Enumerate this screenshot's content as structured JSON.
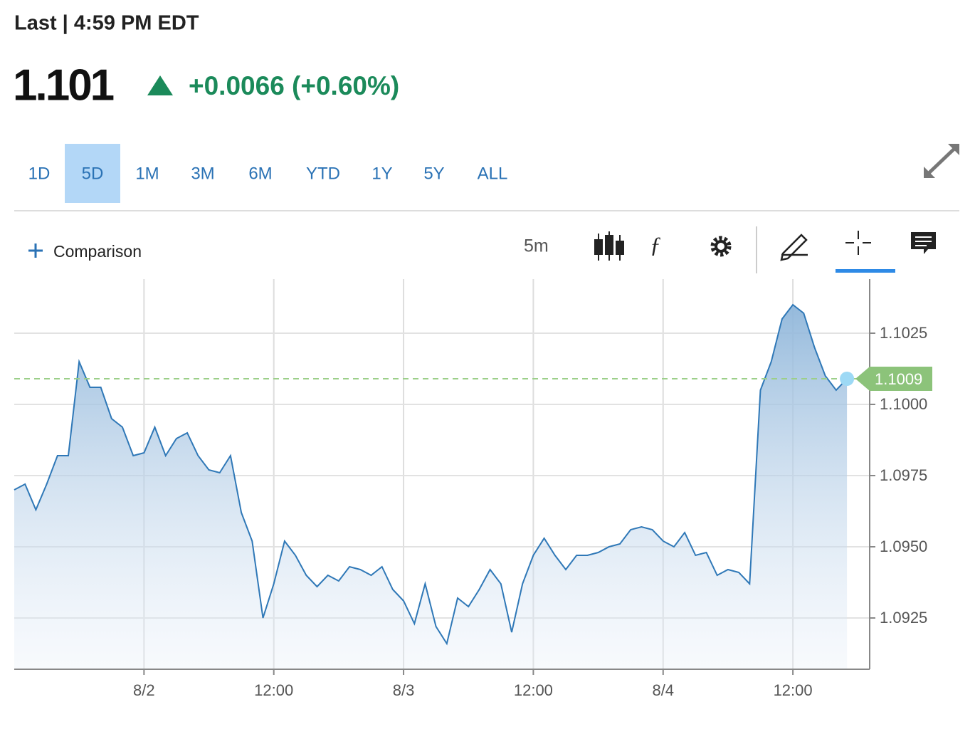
{
  "header": {
    "status": "Last | 4:59 PM EDT",
    "price": "1.101",
    "change": "+0.0066 (+0.60%)"
  },
  "ranges": [
    {
      "label": "1D",
      "selected": false
    },
    {
      "label": "5D",
      "selected": true
    },
    {
      "label": "1M",
      "selected": false
    },
    {
      "label": "3M",
      "selected": false
    },
    {
      "label": "6M",
      "selected": false
    },
    {
      "label": "YTD",
      "selected": false
    },
    {
      "label": "1Y",
      "selected": false
    },
    {
      "label": "5Y",
      "selected": false
    },
    {
      "label": "ALL",
      "selected": false
    }
  ],
  "toolbar": {
    "comparison": "Comparison",
    "interval": "5m"
  },
  "chart_data": {
    "type": "area",
    "color": "#2f78b7",
    "x": [
      "8/1 12:00",
      "8/1 13:00",
      "8/1 14:00",
      "8/1 15:00",
      "8/1 16:00",
      "8/1 17:00",
      "8/1 18:00",
      "8/1 19:00",
      "8/1 20:00",
      "8/1 21:00",
      "8/1 22:00",
      "8/1 23:00",
      "8/2 00:00",
      "8/2 01:00",
      "8/2 02:00",
      "8/2 03:00",
      "8/2 04:00",
      "8/2 05:00",
      "8/2 06:00",
      "8/2 07:00",
      "8/2 08:00",
      "8/2 09:00",
      "8/2 10:00",
      "8/2 11:00",
      "8/2 12:00",
      "8/2 13:00",
      "8/2 14:00",
      "8/2 15:00",
      "8/2 16:00",
      "8/2 17:00",
      "8/2 18:00",
      "8/2 19:00",
      "8/2 20:00",
      "8/2 21:00",
      "8/2 22:00",
      "8/2 23:00",
      "8/3 00:00",
      "8/3 01:00",
      "8/3 02:00",
      "8/3 03:00",
      "8/3 04:00",
      "8/3 05:00",
      "8/3 06:00",
      "8/3 07:00",
      "8/3 08:00",
      "8/3 09:00",
      "8/3 10:00",
      "8/3 11:00",
      "8/3 12:00",
      "8/3 13:00",
      "8/3 14:00",
      "8/3 15:00",
      "8/3 16:00",
      "8/3 17:00",
      "8/3 18:00",
      "8/3 19:00",
      "8/3 20:00",
      "8/3 21:00",
      "8/3 22:00",
      "8/3 23:00",
      "8/4 00:00",
      "8/4 01:00",
      "8/4 02:00",
      "8/4 03:00",
      "8/4 04:00",
      "8/4 05:00",
      "8/4 06:00",
      "8/4 07:00",
      "8/4 08:00",
      "8/4 09:00",
      "8/4 10:00",
      "8/4 11:00",
      "8/4 12:00",
      "8/4 13:00",
      "8/4 14:00",
      "8/4 15:00",
      "8/4 16:00",
      "8/4 17:00"
    ],
    "values": [
      1.097,
      1.0972,
      1.0963,
      1.0972,
      1.0982,
      1.0982,
      1.1015,
      1.1006,
      1.1006,
      1.0995,
      1.0992,
      1.0982,
      1.0983,
      1.0992,
      1.0982,
      1.0988,
      1.099,
      1.0982,
      1.0977,
      1.0976,
      1.0982,
      1.0962,
      1.0952,
      1.0925,
      1.0937,
      1.0952,
      1.0947,
      1.094,
      1.0936,
      1.094,
      1.0938,
      1.0943,
      1.0942,
      1.094,
      1.0943,
      1.0935,
      1.0931,
      1.0923,
      1.0937,
      1.0922,
      1.0916,
      1.0932,
      1.0929,
      1.0935,
      1.0942,
      1.0937,
      1.092,
      1.0937,
      1.0947,
      1.0953,
      1.0947,
      1.0942,
      1.0947,
      1.0947,
      1.0948,
      1.095,
      1.0951,
      1.0956,
      1.0957,
      1.0956,
      1.0952,
      1.095,
      1.0955,
      1.0947,
      1.0948,
      1.094,
      1.0942,
      1.0941,
      1.0937,
      1.1005,
      1.1015,
      1.103,
      1.1035,
      1.1032,
      1.102,
      1.101,
      1.1005,
      1.1009
    ],
    "last_price": 1.1009,
    "xlim": [
      "8/1 12:00",
      "8/4 19:06"
    ],
    "xticks": [
      {
        "value": "8/2 00:00",
        "label": "8/2"
      },
      {
        "value": "8/2 12:00",
        "label": "12:00"
      },
      {
        "value": "8/3 00:00",
        "label": "8/3"
      },
      {
        "value": "8/3 12:00",
        "label": "12:00"
      },
      {
        "value": "8/4 00:00",
        "label": "8/4"
      },
      {
        "value": "8/4 12:00",
        "label": "12:00"
      }
    ],
    "ylim": [
      1.0907,
      1.1044
    ],
    "yticks": [
      1.0925,
      {
        "value": 1.095,
        "label": "1.0950"
      },
      1.0975,
      {
        "value": 1.1,
        "label": "1.1000"
      },
      1.1025
    ],
    "grid": true
  }
}
